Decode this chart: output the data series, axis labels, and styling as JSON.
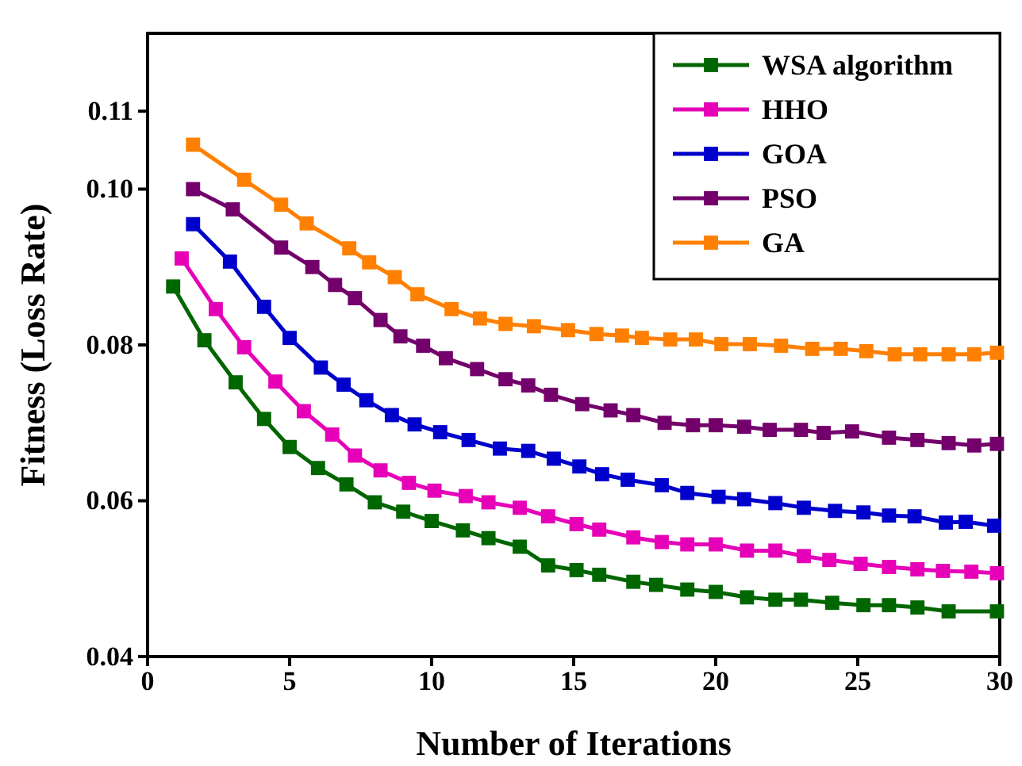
{
  "chart_data": {
    "type": "line",
    "xlabel": "Number of Iterations",
    "ylabel": "Fitness (Loss Rate)",
    "xlim": [
      0,
      30
    ],
    "xticks": [
      0,
      5,
      10,
      15,
      20,
      25,
      30
    ],
    "ylim": [
      0.04,
      0.12
    ],
    "yticks": [
      {
        "value": 0.04,
        "label": "0.04"
      },
      {
        "value": 0.06,
        "label": "0.06"
      },
      {
        "value": 0.08,
        "label": "0.08"
      },
      {
        "value": 0.1,
        "label": "0.10"
      },
      {
        "value": 0.11,
        "label": "0.11"
      }
    ],
    "legend": "top right",
    "marker": "square",
    "line_style": "solid",
    "grid": false,
    "series": [
      {
        "name": "WSA algorithm",
        "color": "#006600",
        "x": [
          0.9,
          2,
          3.1,
          4.1,
          5,
          6,
          7,
          8,
          9,
          10,
          11.1,
          12,
          13.1,
          14.1,
          15.1,
          15.9,
          17.1,
          17.9,
          19,
          20,
          21.1,
          22.1,
          23,
          24.1,
          25.2,
          26.1,
          27.1,
          28.2,
          29.9
        ],
        "values": [
          0.0875,
          0.0806,
          0.0752,
          0.0705,
          0.0669,
          0.0642,
          0.0621,
          0.0598,
          0.0586,
          0.0574,
          0.0562,
          0.0552,
          0.0541,
          0.0517,
          0.0511,
          0.0505,
          0.0496,
          0.0492,
          0.0486,
          0.0483,
          0.0476,
          0.0473,
          0.0473,
          0.0469,
          0.0466,
          0.0466,
          0.0463,
          0.0458,
          0.0458
        ]
      },
      {
        "name": "HHO",
        "color": "#e600b8",
        "x": [
          1.2,
          2.4,
          3.4,
          4.5,
          5.5,
          6.5,
          7.3,
          8.2,
          9.2,
          10.1,
          11.2,
          12,
          13.1,
          14.1,
          15.1,
          15.9,
          17.1,
          18.1,
          19,
          20,
          21.1,
          22.1,
          23.1,
          24,
          25.1,
          26.1,
          27.1,
          28,
          29,
          29.9
        ],
        "values": [
          0.0911,
          0.0846,
          0.0797,
          0.0753,
          0.0715,
          0.0685,
          0.0658,
          0.0639,
          0.0623,
          0.0613,
          0.0606,
          0.0598,
          0.0591,
          0.058,
          0.057,
          0.0563,
          0.0553,
          0.0547,
          0.0544,
          0.0544,
          0.0536,
          0.0536,
          0.0529,
          0.0524,
          0.0519,
          0.0515,
          0.0512,
          0.051,
          0.0509,
          0.0507
        ]
      },
      {
        "name": "GOA",
        "color": "#0000cc",
        "x": [
          1.6,
          2.9,
          4.1,
          5,
          6.1,
          6.9,
          7.7,
          8.6,
          9.4,
          10.3,
          11.3,
          12.4,
          13.4,
          14.3,
          15.2,
          16,
          16.9,
          18.1,
          19,
          20.1,
          21,
          22.1,
          23.1,
          24.2,
          25.2,
          26.1,
          27,
          28.1,
          28.8,
          29.8
        ],
        "values": [
          0.0955,
          0.0907,
          0.0849,
          0.0809,
          0.0771,
          0.0749,
          0.0729,
          0.071,
          0.0698,
          0.0688,
          0.0678,
          0.0667,
          0.0664,
          0.0654,
          0.0644,
          0.0634,
          0.0627,
          0.062,
          0.061,
          0.0605,
          0.0602,
          0.0597,
          0.0591,
          0.0587,
          0.0585,
          0.0581,
          0.058,
          0.0572,
          0.0573,
          0.0568
        ]
      },
      {
        "name": "PSO",
        "color": "#73006b",
        "x": [
          1.6,
          3,
          4.7,
          5.8,
          6.6,
          7.3,
          8.2,
          8.9,
          9.7,
          10.5,
          11.6,
          12.6,
          13.4,
          14.2,
          15.3,
          16.3,
          17.1,
          18.2,
          19.2,
          20,
          21,
          21.9,
          23,
          23.8,
          24.8,
          26.1,
          27.1,
          28.2,
          29.1,
          29.9
        ],
        "values": [
          0.1,
          0.0974,
          0.0925,
          0.09,
          0.0877,
          0.086,
          0.0832,
          0.0811,
          0.0799,
          0.0783,
          0.0769,
          0.0756,
          0.0748,
          0.0736,
          0.0724,
          0.0716,
          0.071,
          0.07,
          0.0697,
          0.0697,
          0.0695,
          0.0691,
          0.0691,
          0.0687,
          0.0689,
          0.0681,
          0.0678,
          0.0674,
          0.0671,
          0.0673
        ]
      },
      {
        "name": "GA",
        "color": "#ff8000",
        "x": [
          1.6,
          3.4,
          4.7,
          5.6,
          7.1,
          7.8,
          8.7,
          9.5,
          10.7,
          11.7,
          12.6,
          13.6,
          14.8,
          15.8,
          16.7,
          17.4,
          18.4,
          19.3,
          20.2,
          21.2,
          22.3,
          23.4,
          24.4,
          25.3,
          26.3,
          27.2,
          28.2,
          29.1,
          29.9
        ],
        "values": [
          0.1057,
          0.1012,
          0.098,
          0.0956,
          0.0924,
          0.0906,
          0.0887,
          0.0865,
          0.0846,
          0.0834,
          0.0827,
          0.0824,
          0.0819,
          0.0814,
          0.0812,
          0.0809,
          0.0807,
          0.0807,
          0.0801,
          0.0801,
          0.0799,
          0.0795,
          0.0795,
          0.0792,
          0.0788,
          0.0788,
          0.0788,
          0.0788,
          0.079
        ]
      }
    ]
  }
}
